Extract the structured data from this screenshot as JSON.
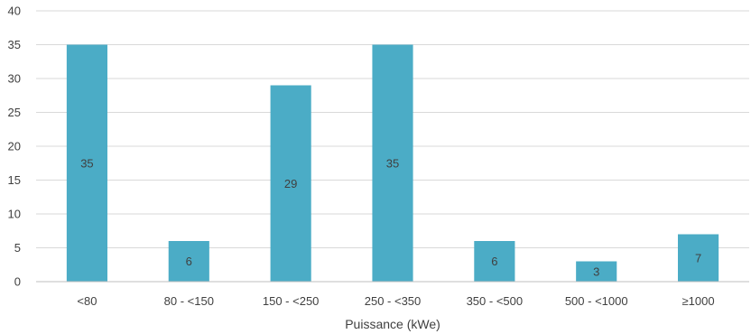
{
  "chart_data": {
    "type": "bar",
    "title": "",
    "xlabel": "Puissance (kWe)",
    "ylabel": "",
    "ylim": [
      0,
      40
    ],
    "yticks": [
      0,
      5,
      10,
      15,
      20,
      25,
      30,
      35,
      40
    ],
    "grid": true,
    "legend": "none",
    "bar_color": "#4BACC6",
    "categories": [
      "<80",
      "80 - <150",
      "150 - <250",
      "250 - <350",
      "350 - <500",
      "500 - <1000",
      "≥1000"
    ],
    "values": [
      35,
      6,
      29,
      35,
      6,
      3,
      7
    ],
    "data_labels": [
      "35",
      "6",
      "29",
      "35",
      "6",
      "3",
      "7"
    ]
  }
}
